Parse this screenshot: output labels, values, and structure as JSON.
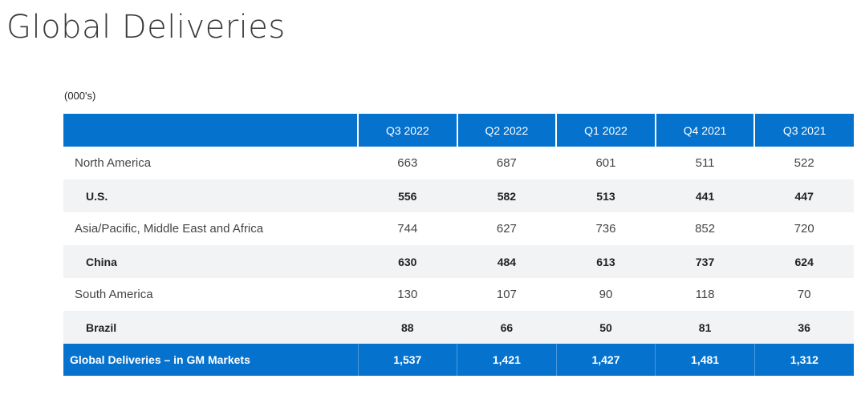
{
  "page": {
    "title": "Global Deliveries",
    "units_note": "(000's)"
  },
  "table": {
    "columns": [
      "Q3 2022",
      "Q2 2022",
      "Q1 2022",
      "Q4 2021",
      "Q3 2021"
    ],
    "rows": [
      {
        "label": "North America",
        "values": [
          "663",
          "687",
          "601",
          "511",
          "522"
        ]
      },
      {
        "label": "U.S.",
        "values": [
          "556",
          "582",
          "513",
          "441",
          "447"
        ]
      },
      {
        "label": "Asia/Pacific, Middle East and Africa",
        "values": [
          "744",
          "627",
          "736",
          "852",
          "720"
        ]
      },
      {
        "label": "China",
        "values": [
          "630",
          "484",
          "613",
          "737",
          "624"
        ]
      },
      {
        "label": "South America",
        "values": [
          "130",
          "107",
          "90",
          "118",
          "70"
        ]
      },
      {
        "label": "Brazil",
        "values": [
          "88",
          "66",
          "50",
          "81",
          "36"
        ]
      }
    ],
    "total": {
      "label": "Global Deliveries – in GM Markets",
      "values": [
        "1,537",
        "1,421",
        "1,427",
        "1,481",
        "1,312"
      ]
    }
  },
  "colors": {
    "header_bg": "#0572ce",
    "stripe_bg": "#f1f3f5"
  }
}
